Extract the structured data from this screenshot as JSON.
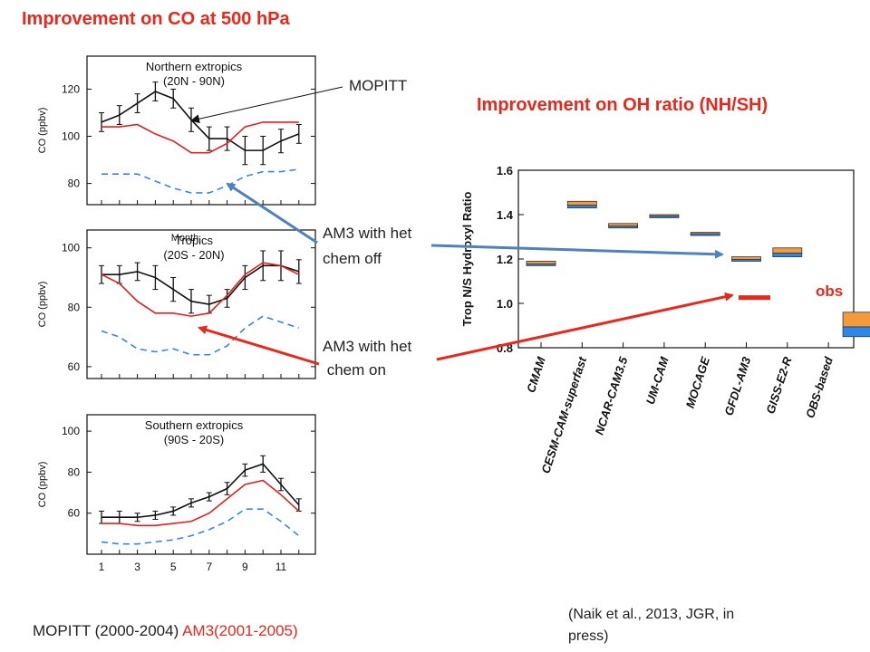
{
  "title_left": "Improvement on CO at 500 hPa",
  "title_right": "Improvement on OH ratio (NH/SH)",
  "labels": {
    "mopitt": "MOPITT",
    "het_off": [
      "AM3 with het",
      "chem off"
    ],
    "het_on": [
      "AM3 with het",
      " chem on"
    ],
    "obs": "obs",
    "footer_mopitt": "MOPITT (2000-2004)",
    "footer_am3": "AM3(2001-2005)",
    "citation": [
      "(Naik et al., 2013, JGR, in",
      "press)"
    ]
  },
  "colors": {
    "title": "#e8281c",
    "obs_line": "#e8281c",
    "arrow_blue": "#4f81bd",
    "arrow_red": "#e8281c",
    "am3_line": "#e02020",
    "dashed": "#3a86d8",
    "bar_orange": "#f39a3c",
    "bar_blue": "#2b88e8"
  },
  "chart_data": [
    {
      "type": "line",
      "panel_title": [
        "Northern extropics",
        "(20N - 90N)"
      ],
      "xlabel": "Month",
      "ylabel": "CO (ppbv)",
      "ylim": [
        71,
        134
      ],
      "yticks": [
        80,
        100,
        120
      ],
      "x": [
        1,
        2,
        3,
        4,
        5,
        6,
        7,
        8,
        9,
        10,
        11,
        12
      ],
      "series": [
        {
          "name": "MOPITT",
          "style": "black-errorbar",
          "values": [
            106,
            109,
            114,
            119,
            116,
            107,
            99,
            99,
            94,
            94,
            98,
            101
          ],
          "err": [
            4,
            4,
            4,
            4,
            4,
            5,
            5,
            5,
            6,
            6,
            5,
            4
          ]
        },
        {
          "name": "AM3 with het chem on",
          "style": "red",
          "values": [
            104,
            104,
            105,
            101,
            98,
            93,
            93,
            97,
            104,
            106,
            106,
            106
          ]
        },
        {
          "name": "AM3 with het chem off",
          "style": "blue-dashed",
          "values": [
            84,
            84,
            84,
            81,
            78,
            76,
            76,
            79,
            83,
            85,
            85,
            86
          ]
        }
      ]
    },
    {
      "type": "line",
      "panel_title": [
        "Tropics",
        "(20S - 20N)"
      ],
      "ylabel": "CO (ppbv)",
      "ylim": [
        56,
        106
      ],
      "yticks": [
        60,
        80,
        100
      ],
      "x": [
        1,
        2,
        3,
        4,
        5,
        6,
        7,
        8,
        9,
        10,
        11,
        12
      ],
      "series": [
        {
          "name": "MOPITT",
          "style": "black-errorbar",
          "values": [
            91,
            91,
            92,
            90,
            86,
            82,
            81,
            83,
            90,
            94,
            94,
            92
          ],
          "err": [
            3,
            3,
            3,
            4,
            4,
            4,
            3,
            3,
            4,
            5,
            5,
            4
          ]
        },
        {
          "name": "AM3 with het chem on",
          "style": "red",
          "values": [
            91,
            88,
            82,
            78,
            78,
            77,
            78,
            84,
            91,
            95,
            94,
            91
          ]
        },
        {
          "name": "AM3 with het chem off",
          "style": "blue-dashed",
          "values": [
            72,
            70,
            66,
            65,
            66,
            64,
            64,
            67,
            73,
            77,
            75,
            73
          ]
        }
      ]
    },
    {
      "type": "line",
      "panel_title": [
        "Southern extropics",
        "(90S - 20S)"
      ],
      "ylabel": "CO (ppbv)",
      "ylim": [
        40,
        108
      ],
      "yticks": [
        60,
        80,
        100
      ],
      "x": [
        1,
        2,
        3,
        4,
        5,
        6,
        7,
        8,
        9,
        10,
        11,
        12
      ],
      "xticks": [
        1,
        3,
        5,
        7,
        9,
        11
      ],
      "series": [
        {
          "name": "MOPITT",
          "style": "black-errorbar",
          "values": [
            58,
            58,
            58,
            59,
            61,
            65,
            68,
            72,
            81,
            84,
            74,
            64
          ],
          "err": [
            3,
            3,
            2,
            2,
            2,
            2,
            2,
            3,
            3,
            4,
            3,
            3
          ]
        },
        {
          "name": "AM3 with het chem on",
          "style": "red",
          "values": [
            55,
            55,
            54,
            54,
            55,
            56,
            60,
            67,
            74,
            76,
            69,
            61
          ]
        },
        {
          "name": "AM3 with het chem off",
          "style": "blue-dashed",
          "values": [
            46,
            45,
            45,
            46,
            47,
            49,
            52,
            56,
            62,
            62,
            56,
            49
          ]
        }
      ]
    },
    {
      "type": "bar",
      "ylabel": "Trop N/S Hydroxyl Ratio",
      "ylim": [
        0.8,
        1.6
      ],
      "yticks": [
        "0.8",
        "1.0",
        "1.2",
        "1.4",
        "1.6"
      ],
      "categories": [
        "CMAM",
        "CESM-CAM-superfast",
        "NCAR-CAM3.5",
        "UM-CAM",
        "MOCAGE",
        "GFDL-AM3",
        "GISS-E2-R",
        "OBS-based"
      ],
      "values_high": [
        1.19,
        1.46,
        1.36,
        1.4,
        1.32,
        1.21,
        1.25,
        0.96
      ],
      "values_low": [
        1.17,
        1.43,
        1.34,
        1.39,
        1.31,
        1.19,
        1.21,
        0.85
      ],
      "obs_marker": 1.03
    }
  ]
}
